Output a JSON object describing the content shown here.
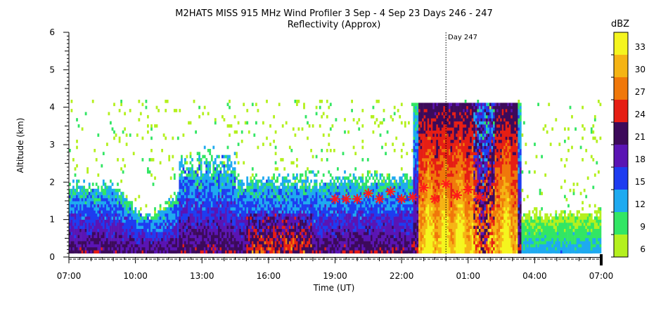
{
  "chart_data": {
    "type": "heatmap",
    "title": "M2HATS MISS 915 MHz Wind Profiler   3 Sep -  4 Sep 23 Days 246 - 247",
    "subtitle": "Reflectivity (Approx)",
    "xlabel": "Time (UT)",
    "ylabel": "Altitude (km)",
    "x_ticks": [
      "07:00",
      "10:00",
      "13:00",
      "16:00",
      "19:00",
      "22:00",
      "01:00",
      "04:00",
      "07:00"
    ],
    "x_tick_hours": [
      0,
      3,
      6,
      9,
      12,
      15,
      18,
      21,
      24
    ],
    "y_ticks": [
      "0",
      "1",
      "2",
      "3",
      "4",
      "5",
      "6"
    ],
    "ylim": [
      0,
      6
    ],
    "xlim_hours": [
      0,
      24
    ],
    "day_marker": {
      "label": "Day 247",
      "hour": 17
    },
    "colorbar": {
      "label": "dBZ",
      "levels": [
        6,
        9,
        12,
        15,
        18,
        21,
        24,
        27,
        30,
        33,
        36
      ],
      "tick_labels": [
        "6",
        "9",
        "12",
        "15",
        "18",
        "21",
        "24",
        "27",
        "30",
        "33"
      ],
      "colors": [
        "#b4f01e",
        "#32e664",
        "#1eaaf0",
        "#1e3cf0",
        "#5a14b4",
        "#3c0a5a",
        "#e61e14",
        "#f0780a",
        "#f5b414",
        "#f5f51e"
      ]
    },
    "markers": [
      {
        "hour": 12.0,
        "alt": 1.55
      },
      {
        "hour": 12.5,
        "alt": 1.55
      },
      {
        "hour": 13.0,
        "alt": 1.55
      },
      {
        "hour": 13.5,
        "alt": 1.7
      },
      {
        "hour": 14.0,
        "alt": 1.55
      },
      {
        "hour": 14.5,
        "alt": 1.75
      },
      {
        "hour": 15.0,
        "alt": 1.55
      },
      {
        "hour": 15.5,
        "alt": 1.6
      },
      {
        "hour": 16.0,
        "alt": 1.85
      },
      {
        "hour": 16.5,
        "alt": 1.55
      },
      {
        "hour": 17.0,
        "alt": 1.95
      },
      {
        "hour": 17.5,
        "alt": 1.65
      },
      {
        "hour": 18.0,
        "alt": 1.8
      },
      {
        "hour": 18.5,
        "alt": 1.6
      }
    ]
  }
}
